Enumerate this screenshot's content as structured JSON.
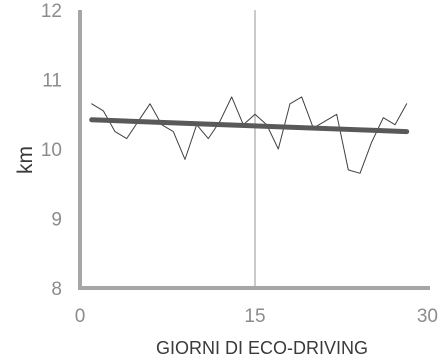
{
  "chart_data": {
    "type": "line",
    "title": "",
    "xlabel": "GIORNI DI ECO-DRIVING",
    "ylabel": "km",
    "xlim": [
      0,
      30
    ],
    "ylim": [
      8,
      12
    ],
    "x_ticks": [
      0,
      15,
      30
    ],
    "y_ticks": [
      8,
      9,
      10,
      11,
      12
    ],
    "grid": false,
    "reference_lines": [
      {
        "x": 15
      }
    ],
    "series": [
      {
        "x": [
          1,
          2,
          3,
          4,
          5,
          6,
          7,
          8,
          9,
          10,
          11,
          12,
          13,
          14,
          15,
          16,
          17,
          18,
          19,
          20,
          21,
          22,
          23,
          24,
          25,
          26,
          27,
          28
        ],
        "values": [
          10.65,
          10.55,
          10.25,
          10.15,
          10.4,
          10.65,
          10.35,
          10.25,
          9.85,
          10.35,
          10.15,
          10.4,
          10.75,
          10.35,
          10.5,
          10.35,
          10.0,
          10.65,
          10.75,
          10.3,
          10.4,
          10.5,
          9.7,
          9.65,
          10.1,
          10.45,
          10.35,
          10.65
        ],
        "style": "thin"
      },
      {
        "x": [
          1,
          28
        ],
        "values": [
          10.42,
          10.25
        ],
        "style": "trend"
      }
    ],
    "colors": {
      "axis": "#a6a6a6",
      "reference": "#a6a6a6",
      "thin": "#404040",
      "trend": "#595959",
      "tick_text": "#8c8c8c",
      "title_text": "#3a3a3a"
    }
  }
}
